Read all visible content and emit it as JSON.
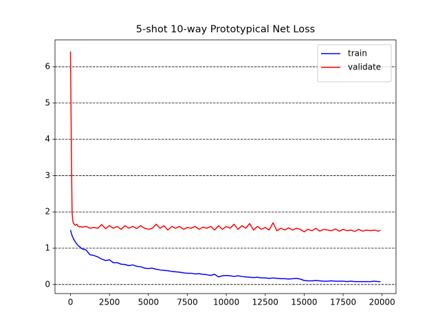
{
  "chart_data": {
    "type": "line",
    "title": "5-shot 10-way Prototypical Net Loss",
    "x": [
      0,
      50,
      100,
      150,
      200,
      300,
      400,
      500,
      750,
      1000,
      1250,
      1500,
      1750,
      2000,
      2250,
      2500,
      2750,
      3000,
      3250,
      3500,
      3750,
      4000,
      4250,
      4500,
      4750,
      5000,
      5250,
      5500,
      5750,
      6000,
      6250,
      6500,
      6750,
      7000,
      7250,
      7500,
      7750,
      8000,
      8250,
      8500,
      8750,
      9000,
      9250,
      9500,
      9750,
      10000,
      10250,
      10500,
      10750,
      11000,
      11250,
      11500,
      11750,
      12000,
      12250,
      12500,
      12750,
      13000,
      13250,
      13500,
      13750,
      14000,
      14250,
      14500,
      14750,
      15000,
      15250,
      15500,
      15750,
      16000,
      16250,
      16500,
      16750,
      17000,
      17250,
      17500,
      17750,
      18000,
      18250,
      18500,
      18750,
      19000,
      19250,
      19500,
      19750,
      19900
    ],
    "series": [
      {
        "name": "train",
        "color": "#0000ff",
        "values": [
          1.5,
          1.42,
          1.35,
          1.3,
          1.25,
          1.18,
          1.12,
          1.07,
          0.98,
          0.95,
          0.82,
          0.8,
          0.76,
          0.7,
          0.66,
          0.68,
          0.6,
          0.6,
          0.56,
          0.55,
          0.52,
          0.54,
          0.5,
          0.49,
          0.45,
          0.44,
          0.45,
          0.42,
          0.4,
          0.39,
          0.38,
          0.36,
          0.35,
          0.34,
          0.32,
          0.31,
          0.31,
          0.29,
          0.3,
          0.28,
          0.27,
          0.25,
          0.28,
          0.21,
          0.24,
          0.25,
          0.24,
          0.22,
          0.24,
          0.22,
          0.21,
          0.2,
          0.19,
          0.2,
          0.18,
          0.18,
          0.17,
          0.18,
          0.17,
          0.16,
          0.16,
          0.15,
          0.16,
          0.17,
          0.15,
          0.11,
          0.1,
          0.1,
          0.11,
          0.1,
          0.09,
          0.09,
          0.1,
          0.09,
          0.09,
          0.09,
          0.08,
          0.09,
          0.08,
          0.08,
          0.08,
          0.08,
          0.08,
          0.09,
          0.08,
          0.08
        ]
      },
      {
        "name": "validate",
        "color": "#ff0000",
        "values": [
          6.42,
          4.0,
          2.0,
          1.75,
          1.68,
          1.63,
          1.66,
          1.6,
          1.58,
          1.6,
          1.55,
          1.57,
          1.55,
          1.65,
          1.54,
          1.62,
          1.55,
          1.6,
          1.52,
          1.62,
          1.55,
          1.6,
          1.54,
          1.62,
          1.55,
          1.52,
          1.55,
          1.66,
          1.55,
          1.62,
          1.5,
          1.6,
          1.55,
          1.6,
          1.52,
          1.57,
          1.55,
          1.6,
          1.52,
          1.58,
          1.55,
          1.6,
          1.5,
          1.62,
          1.52,
          1.6,
          1.55,
          1.66,
          1.52,
          1.62,
          1.55,
          1.68,
          1.5,
          1.6,
          1.52,
          1.57,
          1.5,
          1.7,
          1.48,
          1.55,
          1.5,
          1.56,
          1.5,
          1.55,
          1.52,
          1.45,
          1.52,
          1.48,
          1.55,
          1.47,
          1.52,
          1.5,
          1.48,
          1.53,
          1.47,
          1.52,
          1.48,
          1.5,
          1.46,
          1.52,
          1.47,
          1.5,
          1.48,
          1.5,
          1.47,
          1.49
        ]
      }
    ],
    "xlim": [
      -995,
      20895
    ],
    "xticks": [
      0,
      2500,
      5000,
      7500,
      10000,
      12500,
      15000,
      17500,
      20000
    ],
    "ylim": [
      -0.25,
      6.74
    ],
    "yticks": [
      0,
      1,
      2,
      3,
      4,
      5,
      6
    ],
    "grid": "y",
    "legend": "upper right"
  }
}
